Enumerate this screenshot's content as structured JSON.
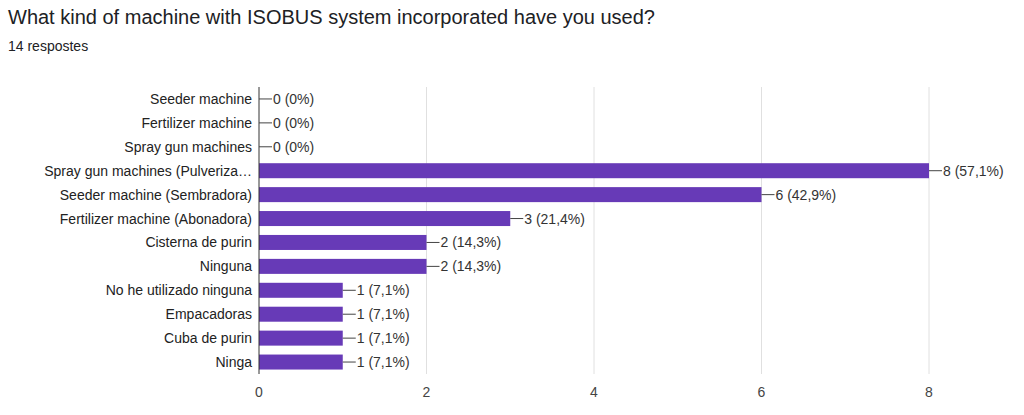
{
  "chart_data": {
    "type": "bar",
    "orientation": "horizontal",
    "title": "What kind of machine with ISOBUS system incorporated have you used?",
    "subtitle": "14 respostes",
    "categories": [
      "Seeder machine",
      "Fertilizer machine",
      "Spray gun machines",
      "Spray gun machines (Pulveriza…",
      "Seeder machine (Sembradora)",
      "Fertilizer machine (Abonadora)",
      "Cisterna de purin",
      "Ninguna",
      "No he utilizado ninguna",
      "Empacadoras",
      "Cuba de purin",
      "Ninga"
    ],
    "values": [
      0,
      0,
      0,
      8,
      6,
      3,
      2,
      2,
      1,
      1,
      1,
      1
    ],
    "value_labels": [
      "0 (0%)",
      "0 (0%)",
      "0 (0%)",
      "8 (57,1%)",
      "6 (42,9%)",
      "3 (21,4%)",
      "2 (14,3%)",
      "2 (14,3%)",
      "1 (7,1%)",
      "1 (7,1%)",
      "1 (7,1%)",
      "1 (7,1%)"
    ],
    "color": "#673ab7",
    "xlim": [
      0,
      8
    ],
    "xticks": [
      0,
      2,
      4,
      6,
      8
    ],
    "grid": true,
    "data_labels": true
  }
}
